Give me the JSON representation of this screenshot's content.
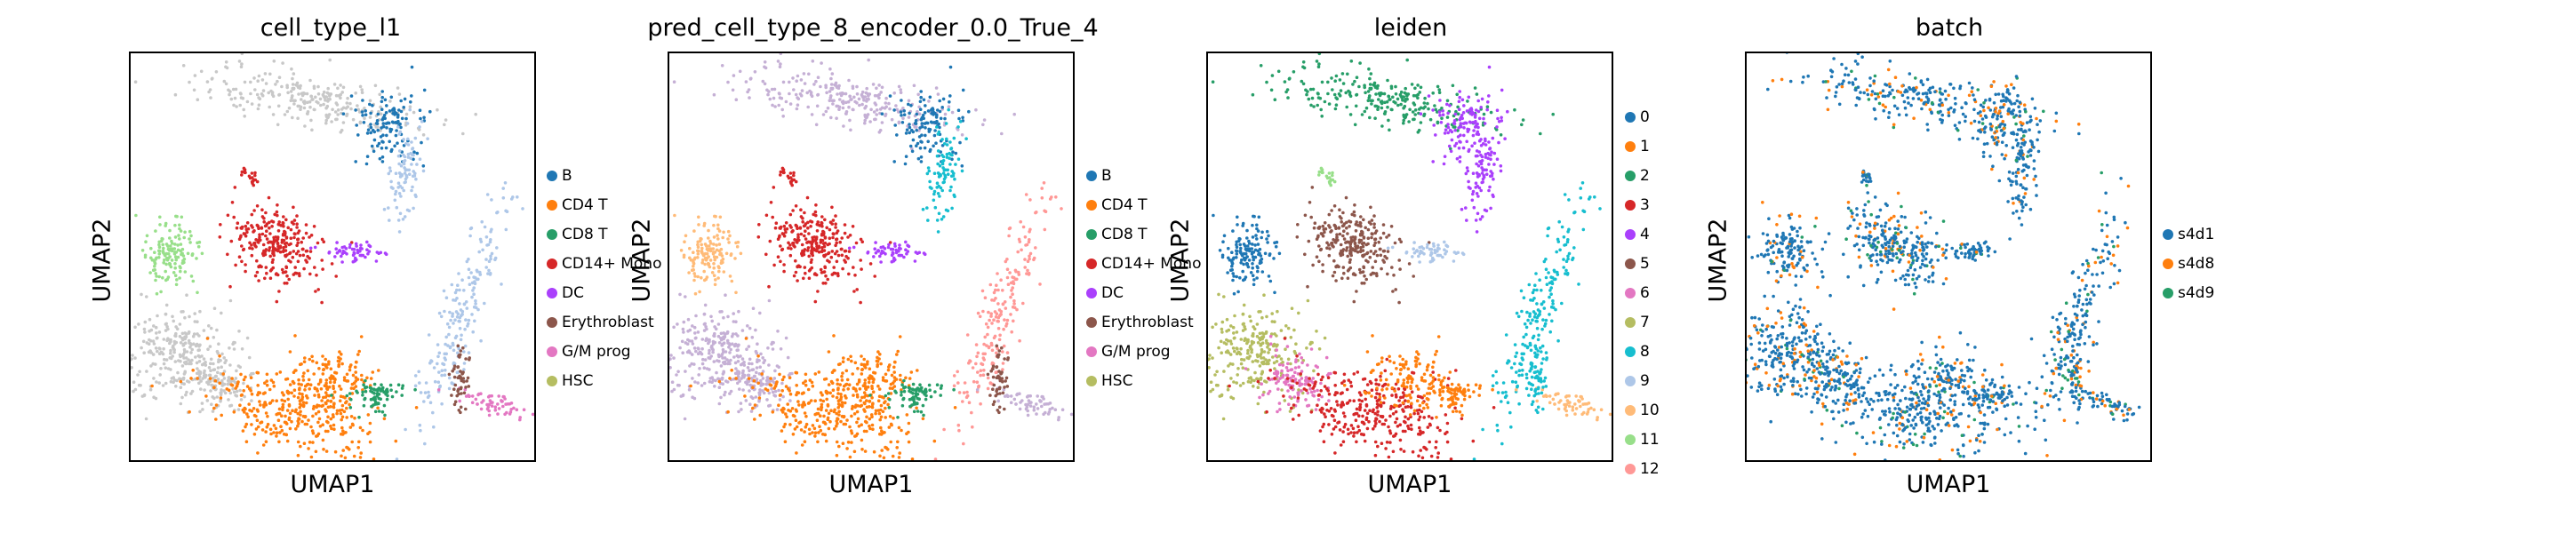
{
  "chart_data": [
    {
      "type": "scatter",
      "title": "cell_type_l1",
      "xlabel": "UMAP1",
      "ylabel": "UMAP2",
      "grid": false,
      "legend_placement": "right",
      "series": [
        {
          "name": "B",
          "color": "#1f77b4"
        },
        {
          "name": "CD4 T",
          "color": "#ff7f0e"
        },
        {
          "name": "CD8 T",
          "color": "#279e68"
        },
        {
          "name": "CD14+ Mono",
          "color": "#d62728"
        },
        {
          "name": "DC",
          "color": "#aa40fc"
        },
        {
          "name": "Erythroblast",
          "color": "#8c564b"
        },
        {
          "name": "G/M prog",
          "color": "#e377c2"
        },
        {
          "name": "HSC",
          "color": "#b5bd61"
        }
      ]
    },
    {
      "type": "scatter",
      "title": "pred_cell_type_8_encoder_0.0_True_4",
      "xlabel": "UMAP1",
      "ylabel": "UMAP2",
      "grid": false,
      "legend_placement": "right",
      "series": [
        {
          "name": "B",
          "color": "#1f77b4"
        },
        {
          "name": "CD4 T",
          "color": "#ff7f0e"
        },
        {
          "name": "CD8 T",
          "color": "#279e68"
        },
        {
          "name": "CD14+ Mono",
          "color": "#d62728"
        },
        {
          "name": "DC",
          "color": "#aa40fc"
        },
        {
          "name": "Erythroblast",
          "color": "#8c564b"
        },
        {
          "name": "G/M prog",
          "color": "#e377c2"
        },
        {
          "name": "HSC",
          "color": "#b5bd61"
        }
      ]
    },
    {
      "type": "scatter",
      "title": "leiden",
      "xlabel": "UMAP1",
      "ylabel": "UMAP2",
      "grid": false,
      "legend_placement": "right",
      "series": [
        {
          "name": "0",
          "color": "#1f77b4"
        },
        {
          "name": "1",
          "color": "#ff7f0e"
        },
        {
          "name": "2",
          "color": "#279e68"
        },
        {
          "name": "3",
          "color": "#d62728"
        },
        {
          "name": "4",
          "color": "#aa40fc"
        },
        {
          "name": "5",
          "color": "#8c564b"
        },
        {
          "name": "6",
          "color": "#e377c2"
        },
        {
          "name": "7",
          "color": "#b5bd61"
        },
        {
          "name": "8",
          "color": "#17becf"
        },
        {
          "name": "9",
          "color": "#aec7e8"
        },
        {
          "name": "10",
          "color": "#ffbb78"
        },
        {
          "name": "11",
          "color": "#98df8a"
        },
        {
          "name": "12",
          "color": "#ff9896"
        }
      ]
    },
    {
      "type": "scatter",
      "title": "batch",
      "xlabel": "UMAP1",
      "ylabel": "UMAP2",
      "grid": false,
      "legend_placement": "right",
      "series": [
        {
          "name": "s4d1",
          "color": "#1f77b4"
        },
        {
          "name": "s4d8",
          "color": "#ff7f0e"
        },
        {
          "name": "s4d9",
          "color": "#279e68"
        }
      ]
    }
  ]
}
